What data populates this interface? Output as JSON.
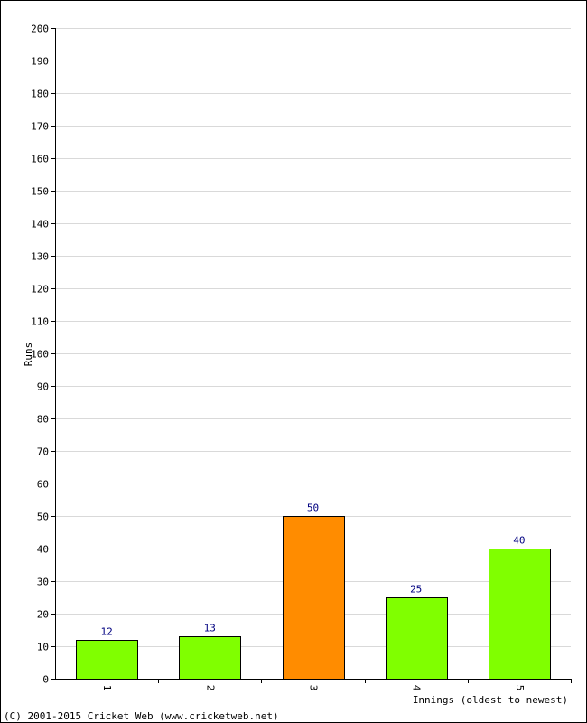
{
  "chart_data": {
    "type": "bar",
    "categories": [
      "1",
      "2",
      "3",
      "4",
      "5"
    ],
    "values": [
      12,
      13,
      50,
      25,
      40
    ],
    "bar_colors": [
      "#80ff00",
      "#80ff00",
      "#ff8c00",
      "#80ff00",
      "#80ff00"
    ],
    "xlabel": "Innings (oldest to newest)",
    "ylabel": "Runs",
    "ylim": [
      0,
      200
    ],
    "ytick_step": 10,
    "grid": true,
    "gridline_color": "#d9d9d9",
    "bar_outline_color": "#000000",
    "data_label_color": "#000080"
  },
  "footer": {
    "copyright": "(C) 2001-2015 Cricket Web (www.cricketweb.net)"
  }
}
